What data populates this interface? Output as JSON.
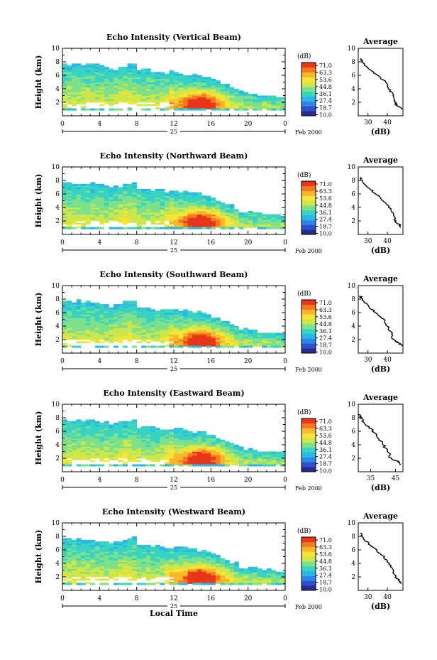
{
  "figure": {
    "xlabel": "Local Time",
    "date_label": "Feb 2000",
    "day_label": "25"
  },
  "colorbar": {
    "unit": "(dB)",
    "levels": [
      "71.0",
      "63.3",
      "53.6",
      "44.8",
      "36.1",
      "27.4",
      "18.7",
      "10.0"
    ],
    "colors": [
      "#2a2b8f",
      "#2f4fd0",
      "#2e86e8",
      "#29b7e6",
      "#38d3c2",
      "#7de08a",
      "#cde64a",
      "#f6e534",
      "#f9b62c",
      "#f57a1f",
      "#e8361b"
    ]
  },
  "chart_data": [
    {
      "type": "heatmap",
      "title": "Echo Intensity (Vertical Beam)",
      "ylabel": "Height (km)",
      "xlim": [
        0,
        24
      ],
      "ylim": [
        0,
        10
      ],
      "xticks": [
        "0",
        "4",
        "8",
        "12",
        "16",
        "20",
        "0"
      ],
      "yticks": [
        "2",
        "4",
        "6",
        "8",
        "10"
      ],
      "zlim": [
        10,
        71
      ],
      "avg_title": "Average",
      "avg_xlabel": "(dB)",
      "avg_xticks": [
        "30",
        "40"
      ],
      "avg_xlim": [
        25,
        48
      ],
      "avg_profile": [
        [
          1,
          48
        ],
        [
          1.5,
          45
        ],
        [
          2,
          44
        ],
        [
          3,
          43
        ],
        [
          4,
          41
        ],
        [
          5,
          39
        ],
        [
          6,
          35
        ],
        [
          7,
          30
        ],
        [
          8,
          27
        ],
        [
          8.5,
          26
        ]
      ]
    },
    {
      "type": "heatmap",
      "title": "Echo Intensity (Northward Beam)",
      "ylabel": "Height (km)",
      "xlim": [
        0,
        24
      ],
      "ylim": [
        0,
        10
      ],
      "xticks": [
        "0",
        "4",
        "8",
        "12",
        "16",
        "20",
        "0"
      ],
      "yticks": [
        "2",
        "4",
        "6",
        "8",
        "10"
      ],
      "zlim": [
        10,
        71
      ],
      "avg_title": "Average",
      "avg_xlabel": "(dB)",
      "avg_xticks": [
        "30",
        "40"
      ],
      "avg_xlim": [
        25,
        48
      ],
      "avg_profile": [
        [
          1,
          47
        ],
        [
          1.5,
          46
        ],
        [
          2,
          44
        ],
        [
          3,
          43
        ],
        [
          4,
          41
        ],
        [
          5,
          38
        ],
        [
          6,
          34
        ],
        [
          7,
          30
        ],
        [
          8,
          27
        ],
        [
          8.5,
          26
        ]
      ]
    },
    {
      "type": "heatmap",
      "title": "Echo Intensity (Southward Beam)",
      "ylabel": "Height (km)",
      "xlim": [
        0,
        24
      ],
      "ylim": [
        0,
        10
      ],
      "xticks": [
        "0",
        "4",
        "8",
        "12",
        "16",
        "20",
        "0"
      ],
      "yticks": [
        "2",
        "4",
        "6",
        "8",
        "10"
      ],
      "zlim": [
        10,
        71
      ],
      "avg_title": "Average",
      "avg_xlabel": "(dB)",
      "avg_xticks": [
        "30",
        "40"
      ],
      "avg_xlim": [
        25,
        48
      ],
      "avg_profile": [
        [
          1,
          48
        ],
        [
          1.5,
          46
        ],
        [
          2,
          43
        ],
        [
          3,
          42
        ],
        [
          4,
          40
        ],
        [
          5,
          38
        ],
        [
          6,
          34
        ],
        [
          7,
          30
        ],
        [
          8,
          27
        ],
        [
          8.5,
          26
        ]
      ]
    },
    {
      "type": "heatmap",
      "title": "Echo Intensity (Eastward Beam)",
      "ylabel": "Height (km)",
      "xlim": [
        0,
        24
      ],
      "ylim": [
        0,
        10
      ],
      "xticks": [
        "0",
        "4",
        "8",
        "12",
        "16",
        "20",
        "0"
      ],
      "yticks": [
        "2",
        "4",
        "6",
        "8",
        "10"
      ],
      "zlim": [
        10,
        71
      ],
      "avg_title": "Average",
      "avg_xlabel": "(dB)",
      "avg_xticks": [
        "35",
        "45"
      ],
      "avg_xlim": [
        30,
        48
      ],
      "avg_profile": [
        [
          1,
          47
        ],
        [
          1.5,
          46
        ],
        [
          2,
          43
        ],
        [
          3,
          42
        ],
        [
          4,
          40
        ],
        [
          5,
          38
        ],
        [
          6,
          36
        ],
        [
          7,
          33
        ],
        [
          8,
          31
        ],
        [
          8.5,
          30
        ]
      ]
    },
    {
      "type": "heatmap",
      "title": "Echo Intensity (Westward Beam)",
      "ylabel": "Height (km)",
      "xlim": [
        0,
        24
      ],
      "ylim": [
        0,
        10
      ],
      "xticks": [
        "0",
        "4",
        "8",
        "12",
        "16",
        "20",
        "0"
      ],
      "yticks": [
        "2",
        "4",
        "6",
        "8",
        "10"
      ],
      "zlim": [
        10,
        71
      ],
      "avg_title": "Average",
      "avg_xlabel": "(dB)",
      "avg_xticks": [
        "30",
        "40"
      ],
      "avg_xlim": [
        25,
        48
      ],
      "avg_profile": [
        [
          1,
          47
        ],
        [
          1.5,
          46
        ],
        [
          2,
          44
        ],
        [
          3,
          43
        ],
        [
          4,
          41
        ],
        [
          5,
          38
        ],
        [
          6,
          34
        ],
        [
          7,
          30
        ],
        [
          8,
          27
        ],
        [
          8.5,
          26
        ]
      ]
    }
  ]
}
